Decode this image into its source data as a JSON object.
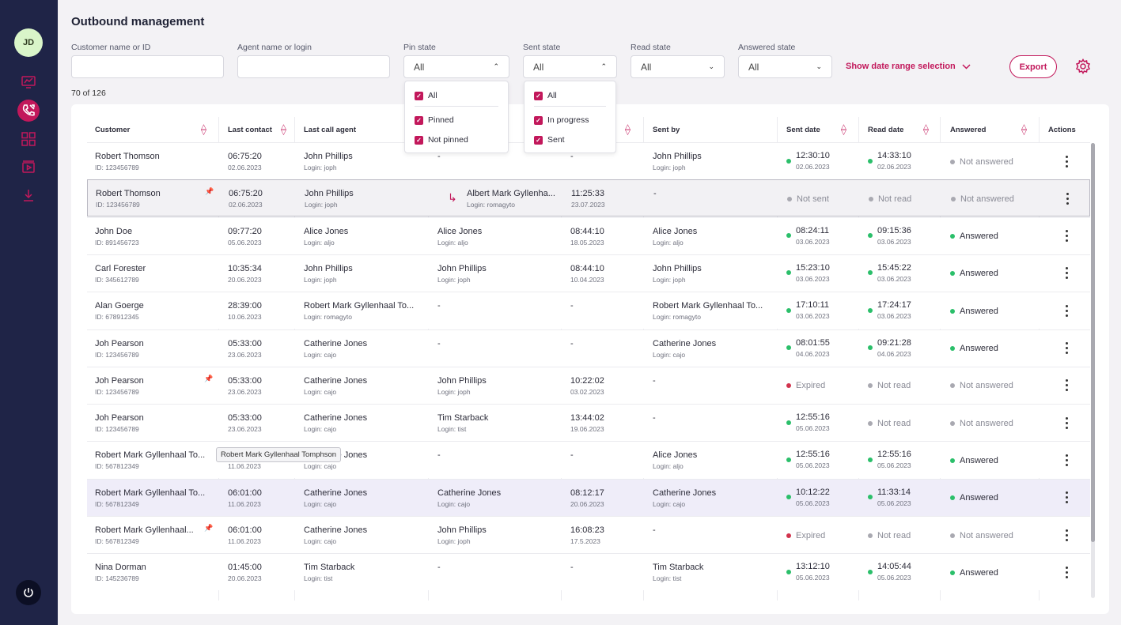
{
  "user": {
    "initials": "JD"
  },
  "title": "Outbound management",
  "filters": {
    "customer_label": "Customer name or ID",
    "customer_value": "",
    "agent_label": "Agent name or login",
    "agent_value": "",
    "pin_label": "Pin state",
    "pin_value": "All",
    "sent_label": "Sent state",
    "sent_value": "All",
    "read_label": "Read state",
    "read_value": "All",
    "answered_label": "Answered state",
    "answered_value": "All",
    "date_range": "Show date range selection",
    "export": "Export"
  },
  "pin_dropdown": [
    "All",
    "Pinned",
    "Not pinned"
  ],
  "sent_dropdown": [
    "All",
    "In progress",
    "Sent"
  ],
  "count": "70 of 126",
  "columns": [
    "Customer",
    "Last contact",
    "Last call agent",
    "",
    "",
    "Sent by",
    "Sent date",
    "Read date",
    "Answered",
    "Actions"
  ],
  "tooltip": "Robert Mark Gyllenhaal Tomphson",
  "colors": {
    "accent": "#c2185b",
    "sidebar": "#1f2447",
    "green": "#2bbf6a",
    "red": "#d1334d",
    "gray": "#a9a9b1"
  },
  "rows": [
    {
      "cust": "Robert Thomson",
      "cust_id": "ID: 123456789",
      "pinned": false,
      "lc_time": "06:75:20",
      "lc_date": "02.06.2023",
      "agent": "John Phillips",
      "agent_login": "Login: joph",
      "fwd": false,
      "tr_agent": "-",
      "tr_login": "",
      "tr_time": "-",
      "tr_date": "",
      "sentby": "John Phillips",
      "sentby_login": "Login: joph",
      "sent_status": "green",
      "sent_time": "12:30:10",
      "sent_date": "02.06.2023",
      "read_status": "green",
      "read_time": "14:33:10",
      "read_date": "02.06.2023",
      "ans_status": "gray",
      "ans": "Not answered"
    },
    {
      "cust": "Robert Thomson",
      "cust_id": "ID: 123456789",
      "pinned": true,
      "lc_time": "06:75:20",
      "lc_date": "02.06.2023",
      "agent": "John Phillips",
      "agent_login": "Login: joph",
      "fwd": true,
      "tr_agent": "Albert Mark Gyllenha...",
      "tr_login": "Login: romagyto",
      "tr_time": "11:25:33",
      "tr_date": "23.07.2023",
      "sentby": "-",
      "sentby_login": "",
      "sent_status": "gray",
      "sent_time": "Not sent",
      "sent_date": "",
      "read_status": "gray",
      "read_time": "Not read",
      "read_date": "",
      "ans_status": "gray",
      "ans": "Not answered"
    },
    {
      "cust": "John Doe",
      "cust_id": "ID: 891456723",
      "pinned": false,
      "lc_time": "09:77:20",
      "lc_date": "05.06.2023",
      "agent": "Alice Jones",
      "agent_login": "Login: aljo",
      "fwd": false,
      "tr_agent": "Alice Jones",
      "tr_login": "Login: aljo",
      "tr_time": "08:44:10",
      "tr_date": "18.05.2023",
      "sentby": "Alice Jones",
      "sentby_login": "Login: aljo",
      "sent_status": "green",
      "sent_time": "08:24:11",
      "sent_date": "03.06.2023",
      "read_status": "green",
      "read_time": "09:15:36",
      "read_date": "03.06.2023",
      "ans_status": "green",
      "ans": "Answered"
    },
    {
      "cust": "Carl Forester",
      "cust_id": "ID: 345612789",
      "pinned": false,
      "lc_time": "10:35:34",
      "lc_date": "20.06.2023",
      "agent": "John Phillips",
      "agent_login": "Login: joph",
      "fwd": false,
      "tr_agent": "John Phillips",
      "tr_login": "Login: joph",
      "tr_time": "08:44:10",
      "tr_date": "10.04.2023",
      "sentby": "John Phillips",
      "sentby_login": "Login: joph",
      "sent_status": "green",
      "sent_time": "15:23:10",
      "sent_date": "03.06.2023",
      "read_status": "green",
      "read_time": "15:45:22",
      "read_date": "03.06.2023",
      "ans_status": "green",
      "ans": "Answered"
    },
    {
      "cust": "Alan Goerge",
      "cust_id": "ID: 678912345",
      "pinned": false,
      "lc_time": "28:39:00",
      "lc_date": "10.06.2023",
      "agent": "Robert Mark Gyllenhaal To...",
      "agent_login": "Login: romagyto",
      "fwd": false,
      "tr_agent": "-",
      "tr_login": "",
      "tr_time": "-",
      "tr_date": "",
      "sentby": "Robert Mark Gyllenhaal To...",
      "sentby_login": "Login: romagyto",
      "sent_status": "green",
      "sent_time": "17:10:11",
      "sent_date": "03.06.2023",
      "read_status": "green",
      "read_time": "17:24:17",
      "read_date": "03.06.2023",
      "ans_status": "green",
      "ans": "Answered"
    },
    {
      "cust": "Joh Pearson",
      "cust_id": "ID: 123456789",
      "pinned": false,
      "lc_time": "05:33:00",
      "lc_date": "23.06.2023",
      "agent": "Catherine Jones",
      "agent_login": "Login: cajo",
      "fwd": false,
      "tr_agent": "-",
      "tr_login": "",
      "tr_time": "-",
      "tr_date": "",
      "sentby": "Catherine Jones",
      "sentby_login": "Login: cajo",
      "sent_status": "green",
      "sent_time": "08:01:55",
      "sent_date": "04.06.2023",
      "read_status": "green",
      "read_time": "09:21:28",
      "read_date": "04.06.2023",
      "ans_status": "green",
      "ans": "Answered"
    },
    {
      "cust": "Joh Pearson",
      "cust_id": "ID: 123456789",
      "pinned": true,
      "lc_time": "05:33:00",
      "lc_date": "23.06.2023",
      "agent": "Catherine Jones",
      "agent_login": "Login: cajo",
      "fwd": false,
      "tr_agent": "John Phillips",
      "tr_login": "Login: joph",
      "tr_time": "10:22:02",
      "tr_date": "03.02.2023",
      "sentby": "-",
      "sentby_login": "",
      "sent_status": "red",
      "sent_time": "Expired",
      "sent_date": "",
      "read_status": "gray",
      "read_time": "Not read",
      "read_date": "",
      "ans_status": "gray",
      "ans": "Not answered"
    },
    {
      "cust": "Joh Pearson",
      "cust_id": "ID: 123456789",
      "pinned": false,
      "lc_time": "05:33:00",
      "lc_date": "23.06.2023",
      "agent": "Catherine Jones",
      "agent_login": "Login: cajo",
      "fwd": false,
      "tr_agent": "Tim Starback",
      "tr_login": "Login: tist",
      "tr_time": "13:44:02",
      "tr_date": "19.06.2023",
      "sentby": "-",
      "sentby_login": "",
      "sent_status": "green",
      "sent_time": "12:55:16",
      "sent_date": "05.06.2023",
      "read_status": "gray",
      "read_time": "Not read",
      "read_date": "",
      "ans_status": "gray",
      "ans": "Not answered"
    },
    {
      "cust": "Robert Mark Gyllenhaal To...",
      "cust_id": "ID: 567812349",
      "pinned": false,
      "lc_time": "06:01:00",
      "lc_date": "11.06.2023",
      "agent": "Catherine Jones",
      "agent_login": "Login: cajo",
      "fwd": false,
      "tr_agent": "-",
      "tr_login": "",
      "tr_time": "-",
      "tr_date": "",
      "sentby": "Alice Jones",
      "sentby_login": "Login: aljo",
      "sent_status": "green",
      "sent_time": "12:55:16",
      "sent_date": "05.06.2023",
      "read_status": "green",
      "read_time": "12:55:16",
      "read_date": "05.06.2023",
      "ans_status": "green",
      "ans": "Answered"
    },
    {
      "cust": "Robert Mark Gyllenhaal To...",
      "cust_id": "ID: 567812349",
      "pinned": false,
      "lc_time": "06:01:00",
      "lc_date": "11.06.2023",
      "agent": "Catherine Jones",
      "agent_login": "Login: cajo",
      "fwd": false,
      "tr_agent": "Catherine Jones",
      "tr_login": "Login: cajo",
      "tr_time": "08:12:17",
      "tr_date": "20.06.2023",
      "sentby": "Catherine Jones",
      "sentby_login": "Login: cajo",
      "sent_status": "green",
      "sent_time": "10:12:22",
      "sent_date": "05.06.2023",
      "read_status": "green",
      "read_time": "11:33:14",
      "read_date": "05.06.2023",
      "ans_status": "green",
      "ans": "Answered"
    },
    {
      "cust": "Robert Mark Gyllenhaal...",
      "cust_id": "ID: 567812349",
      "pinned": true,
      "lc_time": "06:01:00",
      "lc_date": "11.06.2023",
      "agent": "Catherine Jones",
      "agent_login": "Login: cajo",
      "fwd": false,
      "tr_agent": "John Phillips",
      "tr_login": "Login: joph",
      "tr_time": "16:08:23",
      "tr_date": "17.5.2023",
      "sentby": "-",
      "sentby_login": "",
      "sent_status": "red",
      "sent_time": "Expired",
      "sent_date": "",
      "read_status": "gray",
      "read_time": "Not read",
      "read_date": "",
      "ans_status": "gray",
      "ans": "Not answered"
    },
    {
      "cust": "Nina Dorman",
      "cust_id": "ID: 145236789",
      "pinned": false,
      "lc_time": "01:45:00",
      "lc_date": "20.06.2023",
      "agent": "Tim Starback",
      "agent_login": "Login: tist",
      "fwd": false,
      "tr_agent": "-",
      "tr_login": "",
      "tr_time": "-",
      "tr_date": "",
      "sentby": "Tim Starback",
      "sentby_login": "Login: tist",
      "sent_status": "green",
      "sent_time": "13:12:10",
      "sent_date": "05.06.2023",
      "read_status": "green",
      "read_time": "14:05:44",
      "read_date": "05.06.2023",
      "ans_status": "green",
      "ans": "Answered"
    }
  ]
}
